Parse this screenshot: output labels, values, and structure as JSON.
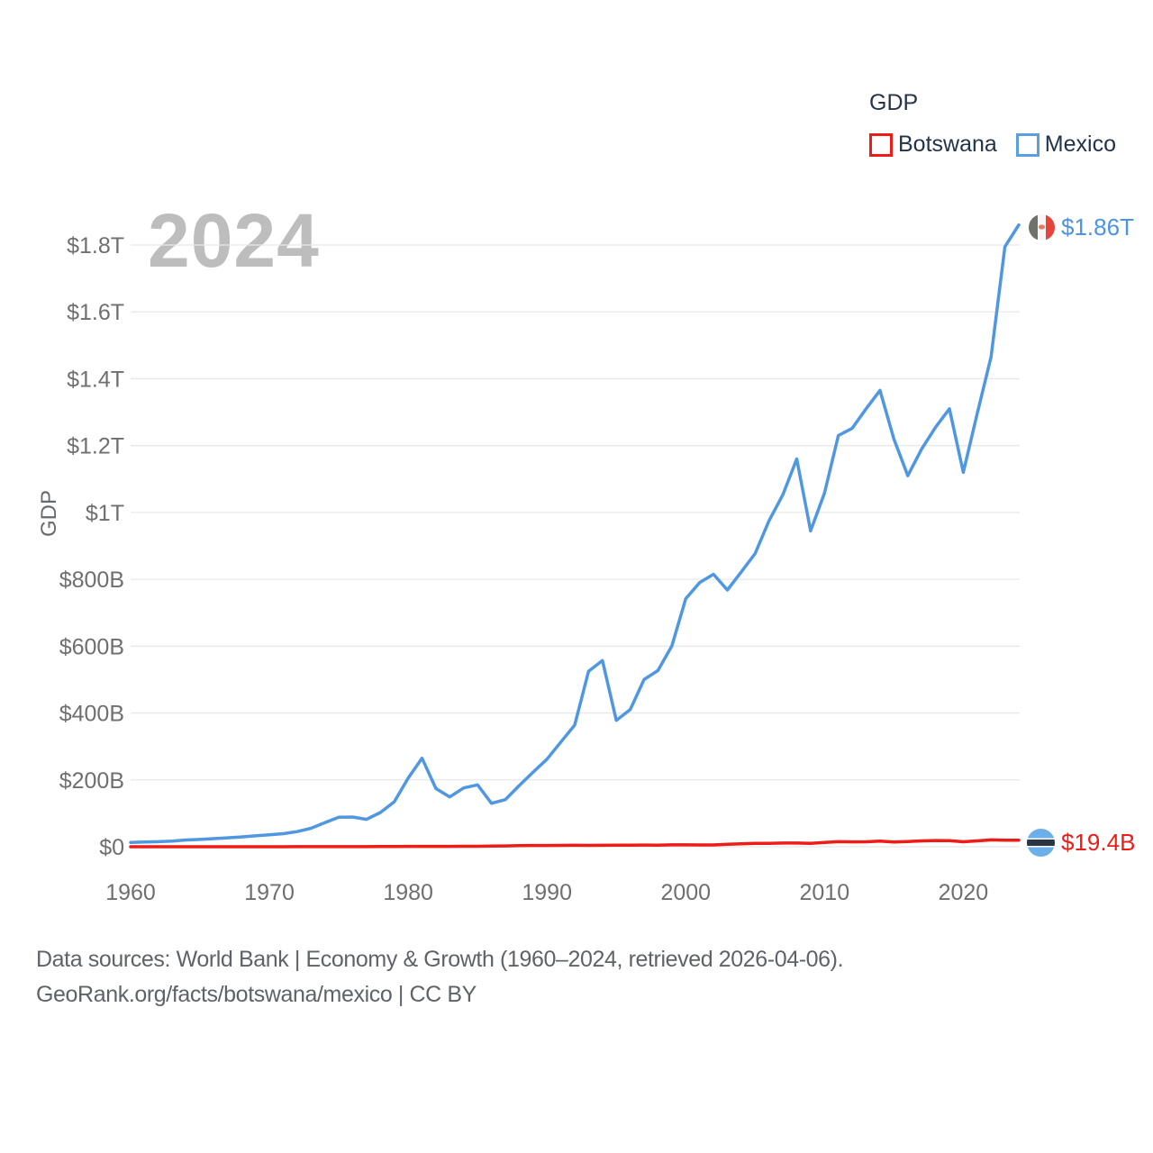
{
  "legend": {
    "title": "GDP",
    "items": [
      {
        "label": "Botswana",
        "color": "#ee1c16"
      },
      {
        "label": "Mexico",
        "color": "#5b9fe0"
      }
    ]
  },
  "watermark": "2024",
  "axis": {
    "y_title": "GDP"
  },
  "end_labels": {
    "mexico": {
      "value": "$1.86T",
      "flag": "mexico-flag"
    },
    "botswana": {
      "value": "$19.4B",
      "flag": "botswana-flag"
    }
  },
  "footer": {
    "line1": "Data sources: World Bank | Economy & Growth (1960–2024, retrieved 2026-04-06).",
    "line2": "GeoRank.org/facts/botswana/mexico | CC BY"
  },
  "chart_data": {
    "type": "line",
    "title": "GDP",
    "ylabel": "GDP",
    "ylim_billions": [
      0,
      1800
    ],
    "grid": true,
    "legend_position": "top-right",
    "x": [
      1960,
      1961,
      1962,
      1963,
      1964,
      1965,
      1966,
      1967,
      1968,
      1969,
      1970,
      1971,
      1972,
      1973,
      1974,
      1975,
      1976,
      1977,
      1978,
      1979,
      1980,
      1981,
      1982,
      1983,
      1984,
      1985,
      1986,
      1987,
      1988,
      1989,
      1990,
      1991,
      1992,
      1993,
      1994,
      1995,
      1996,
      1997,
      1998,
      1999,
      2000,
      2001,
      2002,
      2003,
      2004,
      2005,
      2006,
      2007,
      2008,
      2009,
      2010,
      2011,
      2012,
      2013,
      2014,
      2015,
      2016,
      2017,
      2018,
      2019,
      2020,
      2021,
      2022,
      2023,
      2024
    ],
    "x_ticks": [
      1960,
      1970,
      1980,
      1990,
      2000,
      2010,
      2020
    ],
    "y_ticks": [
      {
        "v": 0,
        "label": "$0"
      },
      {
        "v": 200,
        "label": "$200B"
      },
      {
        "v": 400,
        "label": "$400B"
      },
      {
        "v": 600,
        "label": "$600B"
      },
      {
        "v": 800,
        "label": "$800B"
      },
      {
        "v": 1000,
        "label": "$1T"
      },
      {
        "v": 1200,
        "label": "$1.2T"
      },
      {
        "v": 1400,
        "label": "$1.4T"
      },
      {
        "v": 1600,
        "label": "$1.6T"
      },
      {
        "v": 1800,
        "label": "$1.8T"
      }
    ],
    "series": [
      {
        "name": "Botswana",
        "color": "#ee1c16",
        "end_value_label": "$19.4B",
        "values_billions": [
          0.03,
          0.03,
          0.03,
          0.04,
          0.04,
          0.05,
          0.05,
          0.06,
          0.07,
          0.08,
          0.09,
          0.12,
          0.16,
          0.21,
          0.27,
          0.24,
          0.27,
          0.31,
          0.41,
          0.56,
          1.06,
          1.08,
          1.02,
          1.11,
          1.23,
          1.27,
          1.77,
          2.51,
          3.22,
          3.81,
          3.79,
          3.95,
          4.26,
          4.17,
          4.36,
          4.73,
          4.85,
          5.03,
          4.79,
          5.68,
          5.79,
          5.49,
          5.44,
          7.49,
          8.98,
          9.93,
          10.13,
          10.94,
          10.95,
          10.11,
          12.79,
          15.05,
          14.42,
          14.9,
          16.9,
          14.4,
          15.65,
          17.41,
          18.69,
          18.34,
          14.93,
          17.61,
          20.35,
          19.62,
          19.4
        ]
      },
      {
        "name": "Mexico",
        "color": "#4f97e0",
        "end_value_label": "$1.86T",
        "values_billions": [
          13,
          14.2,
          15.2,
          17,
          20.1,
          21.8,
          24.3,
          26.6,
          29.4,
          32.5,
          35.5,
          39.2,
          45.2,
          55.3,
          72,
          88,
          89,
          82,
          102.5,
          134.5,
          205,
          265,
          174,
          149,
          176,
          185,
          130,
          141,
          183,
          223,
          262,
          313,
          364,
          525,
          557,
          378,
          410,
          500,
          527,
          600,
          742,
          790,
          815,
          768,
          822,
          877,
          975,
          1053,
          1160,
          945,
          1058,
          1230,
          1252,
          1310,
          1365,
          1220,
          1110,
          1190,
          1255,
          1310,
          1120,
          1295,
          1465,
          1795,
          1860
        ]
      }
    ]
  }
}
